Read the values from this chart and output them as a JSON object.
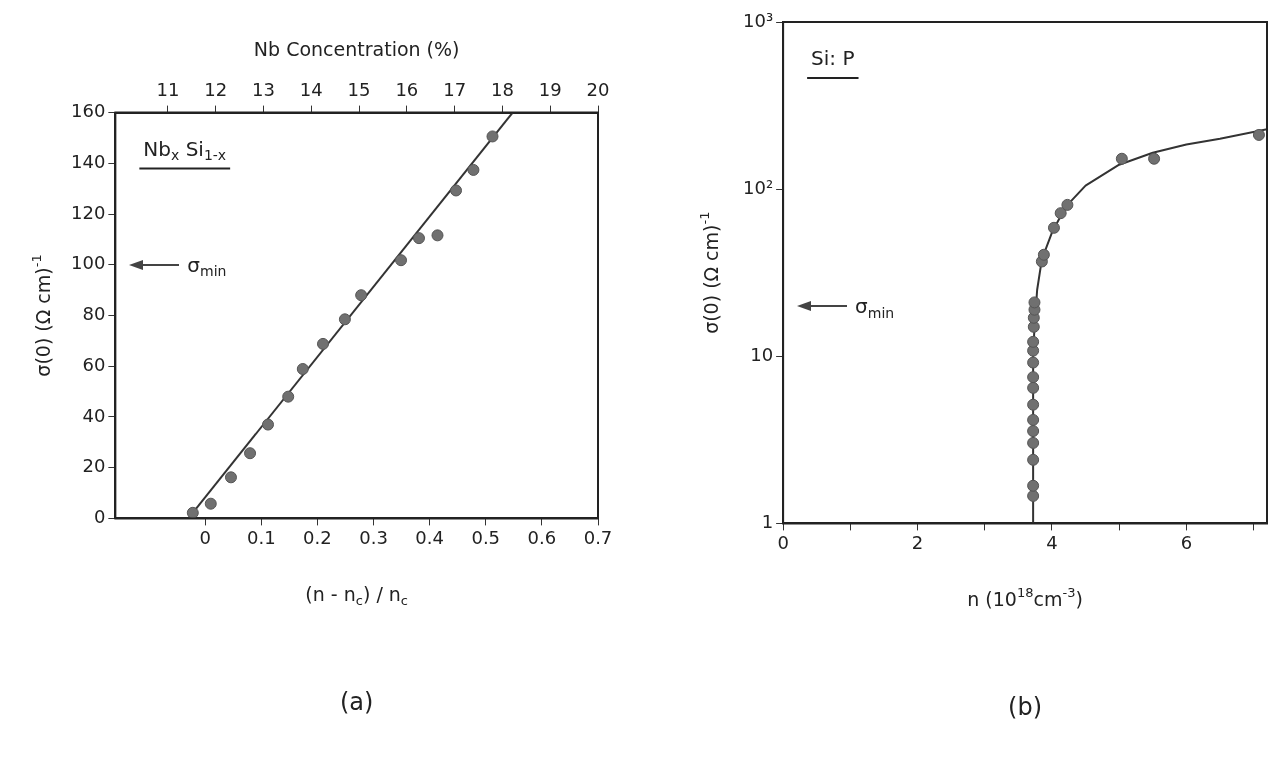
{
  "chart_data": [
    {
      "type": "scatter",
      "title": "Nb$_{x}$ Si$_{1-x}$",
      "xlabel": "(n - n$_{c}$) / n$_{c}$",
      "ylabel": "σ(0) (Ω cm)$^{-1}$",
      "x2label": "Nb Concentration (%)",
      "xlim": [
        -0.16,
        0.7
      ],
      "xticks": [
        0,
        0.1,
        0.2,
        0.3,
        0.4,
        0.5,
        0.6,
        0.7
      ],
      "x2lim": [
        9.9,
        20
      ],
      "x2ticks": [
        11,
        12,
        13,
        14,
        15,
        16,
        17,
        18,
        19,
        20
      ],
      "ylim": [
        0,
        160
      ],
      "yticks": [
        0,
        20,
        40,
        60,
        80,
        100,
        120,
        140,
        160
      ],
      "marker": "circle",
      "series": [
        {
          "color": "#707070",
          "x": [
            -0.022,
            0.01,
            0.046,
            0.08,
            0.112,
            0.148,
            0.174,
            0.21,
            0.249,
            0.278,
            0.349,
            0.381,
            0.414,
            0.447,
            0.478,
            0.512
          ],
          "values": [
            2.2,
            5.8,
            16.2,
            25.7,
            37,
            48,
            58.9,
            68.8,
            78.5,
            88,
            101.8,
            110.5,
            111.6,
            129.3,
            137.4,
            150.6
          ]
        },
        {
          "type": "line",
          "color": "#333333",
          "marker": "none",
          "x": [
            -0.03,
            0.548
          ],
          "values": [
            0,
            160
          ]
        }
      ],
      "ref_lines": [
        {
          "axis": "y",
          "value": 100,
          "label": "σ$_{min}$"
        }
      ],
      "annotations": [
        "(a)"
      ]
    },
    {
      "type": "scatter",
      "title": "Si: P",
      "xlabel": "n (10$^{18}$cm$^{-3}$)",
      "ylabel": "σ(0) (Ω cm)$^{-1}$",
      "log": "y",
      "xlim": [
        0,
        7.2
      ],
      "xticks": [
        0,
        {
          "value": 1,
          "label": null
        },
        2,
        {
          "value": 3,
          "label": null
        },
        4,
        {
          "value": 5,
          "label": null
        },
        6,
        {
          "value": 7,
          "label": null
        }
      ],
      "ylim": [
        1,
        1000
      ],
      "yticks": [
        1,
        10,
        {
          "value": 100,
          "label": "10²"
        },
        {
          "value": 1000,
          "label": "10³"
        }
      ],
      "marker": "circle",
      "series": [
        {
          "color": "#707070",
          "x": [
            3.72,
            3.72,
            3.72,
            3.72,
            3.72,
            3.72,
            3.72,
            3.72,
            3.72,
            3.72,
            3.72,
            3.72,
            3.73,
            3.73,
            3.74,
            3.74,
            3.85,
            3.88,
            4.03,
            4.13,
            4.23,
            5.04,
            5.52,
            7.08
          ],
          "values": [
            1.46,
            1.68,
            2.4,
            3.03,
            3.57,
            4.16,
            5.13,
            6.47,
            7.5,
            9.17,
            10.8,
            12.2,
            15,
            17,
            19,
            21,
            36.9,
            40.5,
            58.7,
            71.8,
            80.5,
            152,
            152,
            211
          ]
        },
        {
          "type": "line",
          "color": "#333333",
          "marker": "none",
          "x": [
            3.72,
            3.72,
            3.74,
            3.78,
            3.85,
            4.0,
            4.2,
            4.5,
            5.0,
            5.5,
            6.0,
            6.5,
            7.2
          ],
          "values": [
            1,
            10,
            15,
            25,
            38,
            55,
            78,
            105,
            140,
            165,
            185,
            200,
            228
          ]
        }
      ],
      "ref_lines": [
        {
          "axis": "y",
          "value": 20,
          "label": "σ$_{min}$"
        }
      ],
      "annotations": [
        "(b)"
      ]
    }
  ]
}
